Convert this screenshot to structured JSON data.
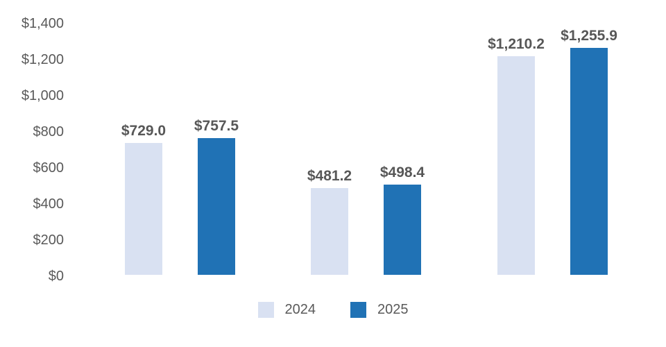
{
  "chart_data": {
    "type": "bar",
    "title": "",
    "xlabel": "",
    "ylabel": "",
    "categories": [
      "",
      "",
      ""
    ],
    "series": [
      {
        "name": "2024",
        "color": "#D9E1F2",
        "values": [
          729.0,
          481.2,
          1210.2
        ],
        "labels": [
          "$729.0",
          "$481.2",
          "$1,210.2"
        ]
      },
      {
        "name": "2025",
        "color": "#2072B5",
        "values": [
          757.5,
          498.4,
          1255.9
        ],
        "labels": [
          "$757.5",
          "$498.4",
          "$1,255.9"
        ]
      }
    ],
    "ylim": [
      0,
      1400
    ],
    "y_ticks": [
      0,
      200,
      400,
      600,
      800,
      1000,
      1200,
      1400
    ],
    "y_tick_labels": [
      "$0",
      "$200",
      "$400",
      "$600",
      "$800",
      "$1,000",
      "$1,200",
      "$1,400"
    ],
    "grid": false,
    "axis_lines": false,
    "legend_position": "bottom",
    "legend": [
      "2024",
      "2025"
    ]
  },
  "colors": {
    "background": "#ffffff",
    "axis_label_text": "#595959",
    "data_label_text": "#575757",
    "series_2024": "#D9E1F2",
    "series_2025": "#2072B5"
  }
}
